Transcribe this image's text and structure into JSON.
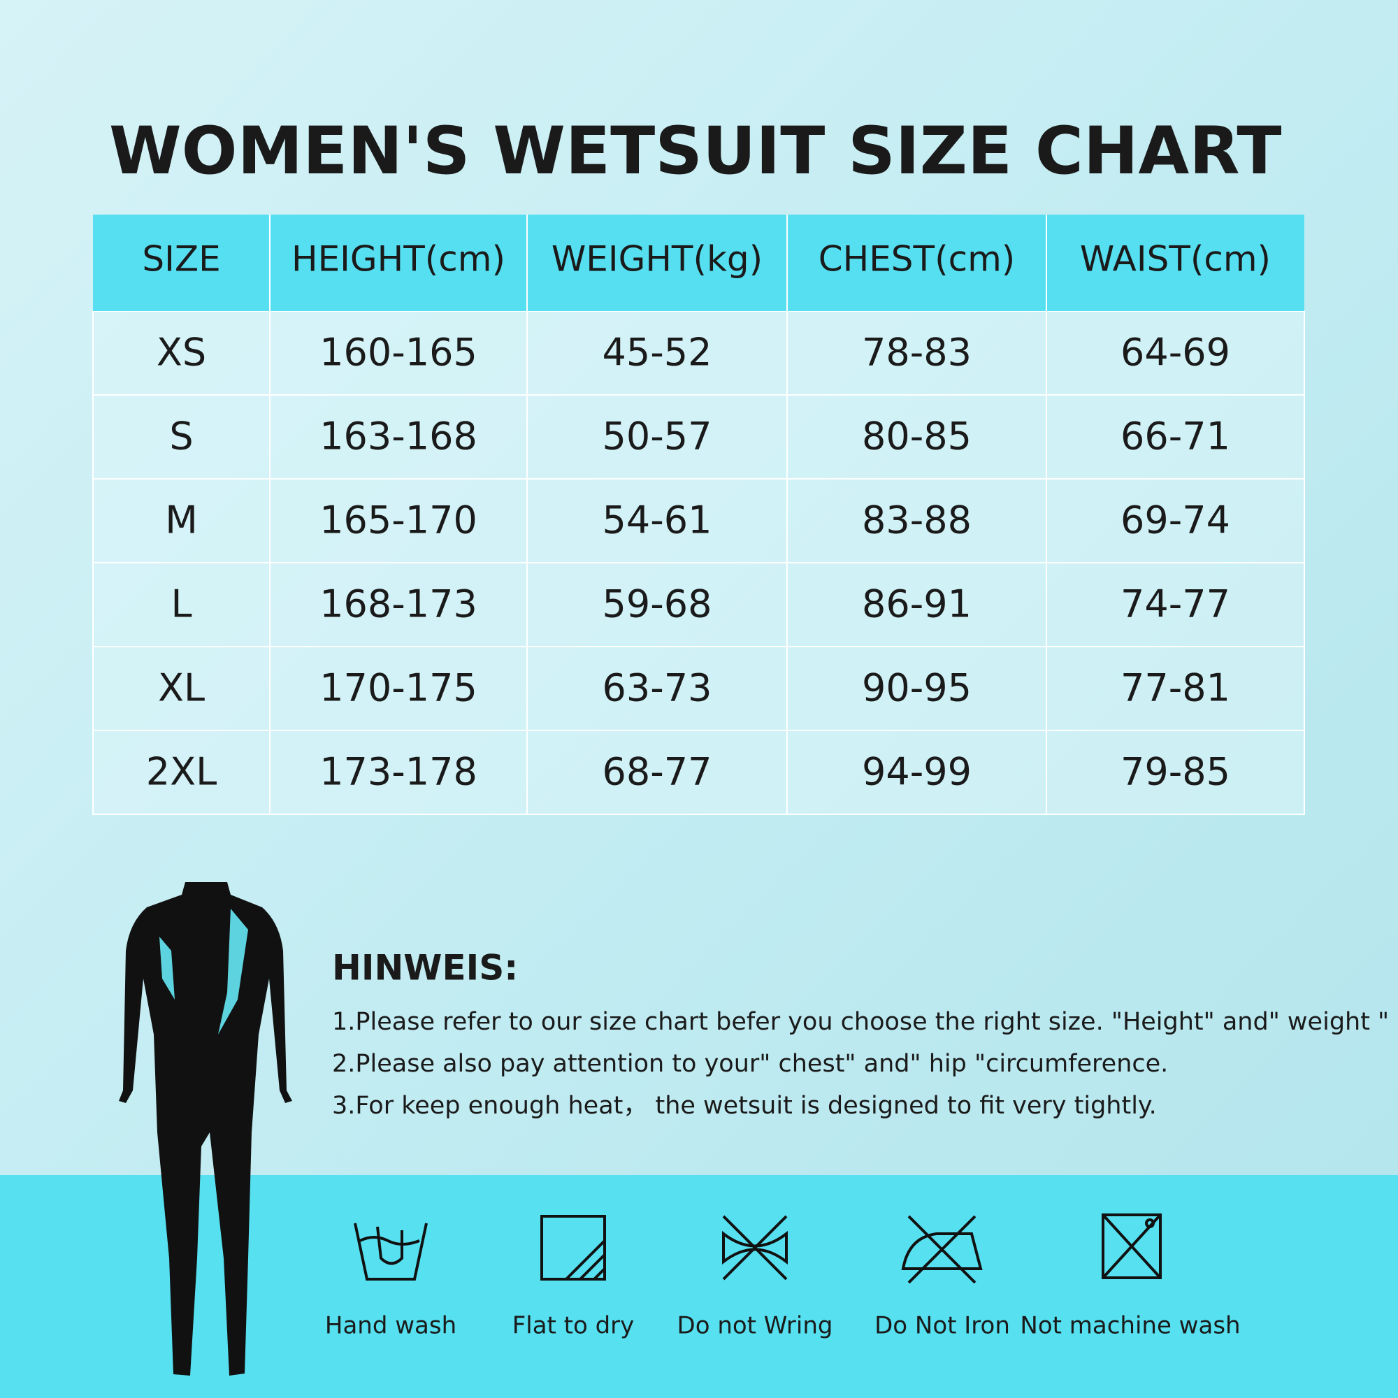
{
  "header": {
    "title": "WOMEN'S WETSUIT SIZE CHART"
  },
  "table": {
    "columns": [
      "SIZE",
      "HEIGHT(cm)",
      "WEIGHT(kg)",
      "CHEST(cm)",
      "WAIST(cm)"
    ],
    "rows": [
      [
        "XS",
        "160-165",
        "45-52",
        "78-83",
        "64-69"
      ],
      [
        "S",
        "163-168",
        "50-57",
        "80-85",
        "66-71"
      ],
      [
        "M",
        "165-170",
        "54-61",
        "83-88",
        "69-74"
      ],
      [
        "L",
        "168-173",
        "59-68",
        "86-91",
        "74-77"
      ],
      [
        "XL",
        "170-175",
        "63-73",
        "90-95",
        "77-81"
      ],
      [
        "2XL",
        "173-178",
        "68-77",
        "94-99",
        "79-85"
      ]
    ]
  },
  "notes": {
    "title": "HINWEIS:",
    "items": [
      "1.Please refer to our size chart befer you choose the right size.  \"Height\" and\" weight \"",
      "2.Please also pay attention to your\" chest\" and\" hip \"circumference.",
      "3.For keep enough heat， the wetsuit is designed to fit very tightly."
    ]
  },
  "care": {
    "items": [
      "Hand wash",
      "Flat to dry",
      "Do not Wring",
      "Do Not Iron",
      "Not machine wash"
    ]
  }
}
